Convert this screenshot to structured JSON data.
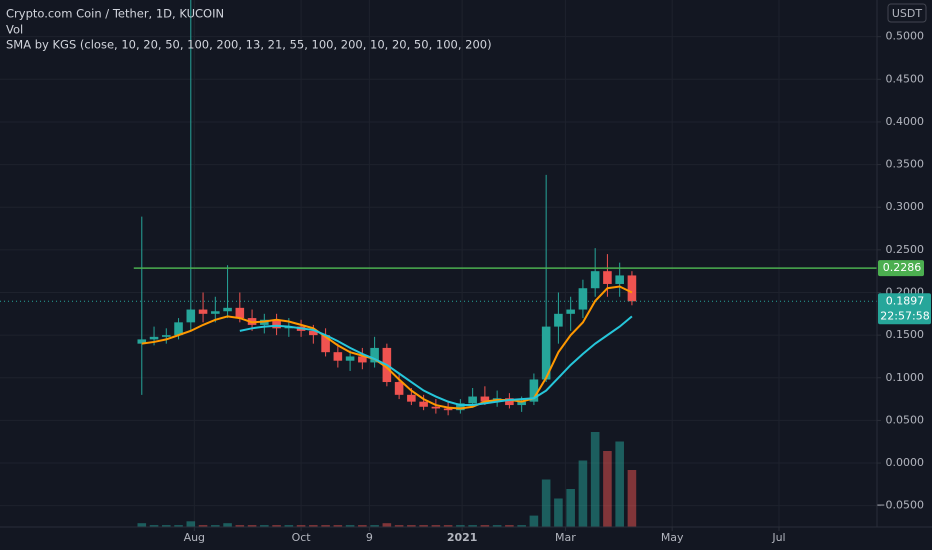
{
  "chart_data": {
    "type": "candlestick",
    "title": "Crypto.com Coin / Tether, 1D, KUCOIN",
    "indicators": [
      "Vol",
      "SMA by KGS (close, 10, 20, 50, 100, 200, 13, 21, 55, 100, 200, 10, 20, 50, 100, 200)"
    ],
    "currency": "USDT",
    "x": [
      -30,
      -23,
      -16,
      -9,
      -2,
      5,
      12,
      19,
      26,
      33,
      40,
      47,
      54,
      61,
      68,
      75,
      82,
      89,
      96,
      103,
      110,
      117,
      124,
      131,
      138,
      145,
      152,
      159,
      166,
      173,
      180,
      187,
      194,
      201,
      208,
      215,
      222,
      229,
      236,
      243,
      250
    ],
    "open": [
      0.14,
      0.145,
      0.148,
      0.15,
      0.165,
      0.18,
      0.175,
      0.178,
      0.182,
      0.17,
      0.162,
      0.168,
      0.158,
      0.16,
      0.155,
      0.15,
      0.13,
      0.12,
      0.125,
      0.118,
      0.135,
      0.095,
      0.08,
      0.072,
      0.066,
      0.064,
      0.062,
      0.07,
      0.078,
      0.072,
      0.076,
      0.068,
      0.072,
      0.098,
      0.16,
      0.175,
      0.18,
      0.205,
      0.225,
      0.21,
      0.22
    ],
    "high": [
      0.289,
      0.16,
      0.158,
      0.17,
      0.543,
      0.2,
      0.195,
      0.232,
      0.2,
      0.18,
      0.175,
      0.175,
      0.17,
      0.168,
      0.162,
      0.158,
      0.14,
      0.132,
      0.135,
      0.148,
      0.14,
      0.105,
      0.088,
      0.08,
      0.075,
      0.072,
      0.075,
      0.088,
      0.09,
      0.085,
      0.082,
      0.078,
      0.105,
      0.338,
      0.2,
      0.195,
      0.215,
      0.252,
      0.245,
      0.235,
      0.225
    ],
    "low": [
      0.08,
      0.138,
      0.14,
      0.145,
      0.155,
      0.165,
      0.165,
      0.17,
      0.165,
      0.155,
      0.152,
      0.15,
      0.148,
      0.148,
      0.14,
      0.125,
      0.112,
      0.108,
      0.11,
      0.112,
      0.09,
      0.075,
      0.068,
      0.062,
      0.058,
      0.056,
      0.058,
      0.065,
      0.068,
      0.066,
      0.064,
      0.06,
      0.068,
      0.095,
      0.14,
      0.155,
      0.17,
      0.195,
      0.195,
      0.195,
      0.185
    ],
    "close": [
      0.145,
      0.148,
      0.15,
      0.165,
      0.18,
      0.175,
      0.178,
      0.182,
      0.17,
      0.162,
      0.168,
      0.158,
      0.16,
      0.155,
      0.15,
      0.13,
      0.12,
      0.125,
      0.118,
      0.135,
      0.095,
      0.08,
      0.072,
      0.066,
      0.064,
      0.062,
      0.07,
      0.078,
      0.072,
      0.076,
      0.068,
      0.072,
      0.098,
      0.16,
      0.175,
      0.18,
      0.205,
      0.225,
      0.21,
      0.22,
      0.1897
    ],
    "volume": [
      2,
      1,
      1,
      1,
      3,
      1,
      1,
      2,
      1,
      1,
      1,
      1,
      1,
      1,
      1,
      1,
      1,
      1,
      1,
      1,
      2,
      1,
      1,
      1,
      1,
      1,
      1,
      1,
      1,
      1,
      1,
      1,
      6,
      25,
      15,
      20,
      35,
      50,
      40,
      45,
      30
    ],
    "volume_lim": [
      0,
      100
    ],
    "up_color": "#26a69a",
    "down_color": "#ef5350",
    "series": [
      {
        "color": "#ff9800",
        "values": [
          0.14,
          0.142,
          0.145,
          0.15,
          0.155,
          0.162,
          0.168,
          0.172,
          0.17,
          0.165,
          0.166,
          0.168,
          0.166,
          0.162,
          0.158,
          0.148,
          0.138,
          0.13,
          0.126,
          0.122,
          0.112,
          0.098,
          0.085,
          0.075,
          0.068,
          0.065,
          0.064,
          0.066,
          0.072,
          0.074,
          0.074,
          0.072,
          0.076,
          0.1,
          0.13,
          0.15,
          0.165,
          0.19,
          0.205,
          0.207,
          0.2
        ]
      },
      {
        "color": "#26c6da",
        "values": [
          null,
          null,
          null,
          null,
          null,
          null,
          null,
          null,
          0.155,
          0.158,
          0.16,
          0.161,
          0.16,
          0.158,
          0.156,
          0.15,
          0.143,
          0.135,
          0.128,
          0.122,
          0.115,
          0.105,
          0.095,
          0.085,
          0.078,
          0.072,
          0.068,
          0.068,
          0.07,
          0.072,
          0.074,
          0.075,
          0.076,
          0.085,
          0.1,
          0.115,
          0.128,
          0.14,
          0.15,
          0.16,
          0.172
        ]
      }
    ],
    "hline": {
      "value": 0.2286,
      "color": "#4caf50"
    },
    "last_price": 0.1897,
    "countdown": "22:57:58",
    "xlim": [
      -111,
      390
    ],
    "xticks": [
      {
        "value": 0,
        "label": "Aug"
      },
      {
        "value": 61,
        "label": "Oct"
      },
      {
        "value": 100,
        "label": "9"
      },
      {
        "value": 153,
        "label": "2021"
      },
      {
        "value": 212,
        "label": "Mar"
      },
      {
        "value": 273,
        "label": "May"
      },
      {
        "value": 334,
        "label": "Jul"
      }
    ],
    "ylim": [
      -0.075,
      0.543
    ],
    "yticks": [
      {
        "value": 0.5,
        "label": "0.5000"
      },
      {
        "value": 0.45,
        "label": "0.4500"
      },
      {
        "value": 0.4,
        "label": "0.4000"
      },
      {
        "value": 0.35,
        "label": "0.3500"
      },
      {
        "value": 0.3,
        "label": "0.3000"
      },
      {
        "value": 0.25,
        "label": "0.2500"
      },
      {
        "value": 0.2,
        "label": "0.2000"
      },
      {
        "value": 0.15,
        "label": "0.1500"
      },
      {
        "value": 0.1,
        "label": "0.1000"
      },
      {
        "value": 0.05,
        "label": "0.0500"
      },
      {
        "value": 0,
        "label": "0.0000"
      },
      {
        "value": -0.05,
        "label": "−0.0500"
      }
    ],
    "grid": true
  }
}
